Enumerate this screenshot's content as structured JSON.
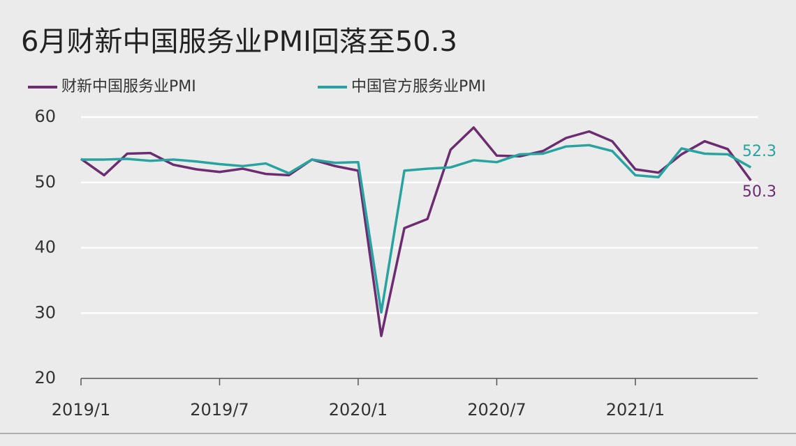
{
  "chart_data": {
    "type": "line",
    "title": "6月财新中国服务业PMI回落至50.3",
    "categories": [
      "2019/1",
      null,
      null,
      null,
      null,
      null,
      "2019/7",
      null,
      null,
      null,
      null,
      null,
      "2020/1",
      null,
      null,
      null,
      null,
      null,
      "2020/7",
      null,
      null,
      null,
      null,
      null,
      "2021/1",
      null,
      null,
      null,
      null,
      null
    ],
    "series": [
      {
        "name": "财新中国服务业PMI",
        "color": "#6b2d6f",
        "values": [
          53.6,
          51.1,
          54.4,
          54.5,
          52.7,
          52.0,
          51.6,
          52.1,
          51.3,
          51.1,
          53.5,
          52.5,
          51.8,
          26.5,
          43.0,
          44.4,
          55.0,
          58.4,
          54.1,
          54.0,
          54.8,
          56.8,
          57.8,
          56.3,
          52.0,
          51.5,
          54.3,
          56.3,
          55.1,
          50.3
        ]
      },
      {
        "name": "中国官方服务业PMI",
        "color": "#27a3a0",
        "values": [
          53.5,
          53.5,
          53.6,
          53.3,
          53.5,
          53.2,
          52.8,
          52.5,
          52.9,
          51.4,
          53.5,
          53.0,
          53.1,
          30.1,
          51.8,
          52.1,
          52.3,
          53.4,
          53.1,
          54.3,
          54.4,
          55.5,
          55.7,
          54.8,
          51.1,
          50.8,
          55.2,
          54.4,
          54.3,
          52.3
        ]
      }
    ],
    "ylim": [
      20,
      60
    ],
    "yticks": [
      20,
      30,
      40,
      50,
      60
    ],
    "grid": true
  }
}
